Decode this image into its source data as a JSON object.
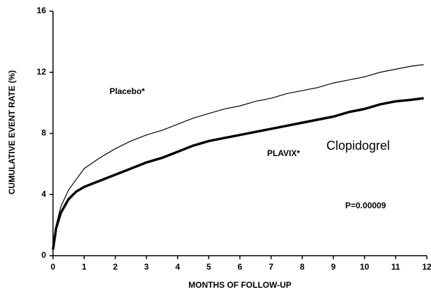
{
  "chart_data": {
    "type": "line",
    "y_label": "CUMULATIVE EVENT RATE (%)",
    "x_label": "MONTHS OF FOLLOW-UP",
    "x": [
      0,
      0.1,
      0.25,
      0.5,
      0.75,
      1,
      1.5,
      2,
      2.5,
      3,
      3.5,
      4,
      4.5,
      5,
      5.5,
      6,
      6.5,
      7,
      7.5,
      8,
      8.5,
      9,
      9.5,
      10,
      10.5,
      11,
      11.5,
      11.9
    ],
    "series": [
      {
        "name": "Placebo*",
        "color": "#000000",
        "values": [
          0.4,
          2.0,
          3.2,
          4.3,
          5.0,
          5.7,
          6.4,
          7.0,
          7.5,
          7.9,
          8.2,
          8.6,
          9.0,
          9.3,
          9.6,
          9.8,
          10.1,
          10.3,
          10.6,
          10.8,
          11.0,
          11.3,
          11.5,
          11.7,
          12.0,
          12.2,
          12.4,
          12.5
        ]
      },
      {
        "name": "PLAVIX*",
        "color": "#000000",
        "values": [
          0.4,
          1.8,
          2.8,
          3.7,
          4.2,
          4.5,
          4.9,
          5.3,
          5.7,
          6.1,
          6.4,
          6.8,
          7.2,
          7.5,
          7.7,
          7.9,
          8.1,
          8.3,
          8.5,
          8.7,
          8.9,
          9.1,
          9.4,
          9.6,
          9.9,
          10.1,
          10.2,
          10.3
        ]
      }
    ],
    "annotations": [
      "Clopidogrel",
      "P=0.00009"
    ],
    "xlim": [
      0,
      12
    ],
    "xticks": [
      0,
      1,
      2,
      3,
      4,
      5,
      6,
      7,
      8,
      9,
      10,
      11,
      12
    ],
    "ylim": [
      0,
      16
    ],
    "yticks": [
      0,
      4,
      8,
      12,
      16
    ]
  }
}
